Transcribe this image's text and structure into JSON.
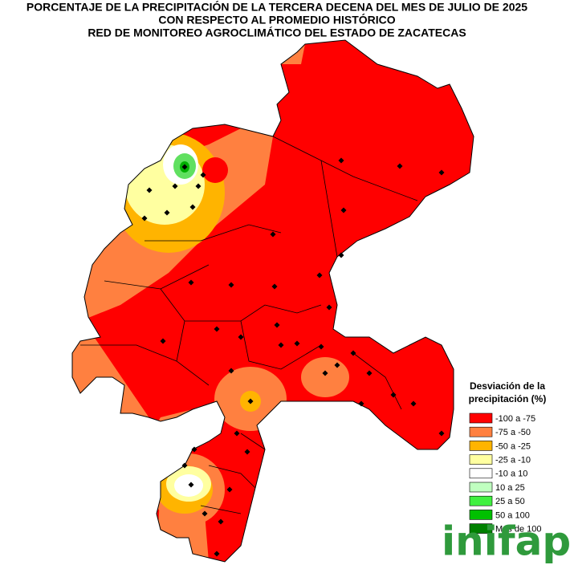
{
  "title": [
    "PORCENTAJE DE LA PRECIPITACIÓN DE LA TERCERA DECENA DEL MES DE JULIO DE 2025",
    "CON RESPECTO AL PROMEDIO HISTÓRICO",
    "RED DE MONITOREO AGROCLIMÁTICO DEL ESTADO DE ZACATECAS"
  ],
  "legend": {
    "title": [
      "Desviación de la",
      "precipitación (%)"
    ],
    "items": [
      {
        "label": "-100 a -75",
        "color": "#ff0000"
      },
      {
        "label": "-75 a -50",
        "color": "#ff8040"
      },
      {
        "label": "-50 a -25",
        "color": "#ffb400"
      },
      {
        "label": "-25 a -10",
        "color": "#ffffa0"
      },
      {
        "label": "-10 a 10",
        "color": "#ffffff"
      },
      {
        "label": "10 a 25",
        "color": "#c0ffc0"
      },
      {
        "label": "25 a 50",
        "color": "#40f040"
      },
      {
        "label": "50 a 100",
        "color": "#00c000"
      },
      {
        "label": "Más de 100",
        "color": "#008000"
      }
    ]
  },
  "logo": "inifap"
}
